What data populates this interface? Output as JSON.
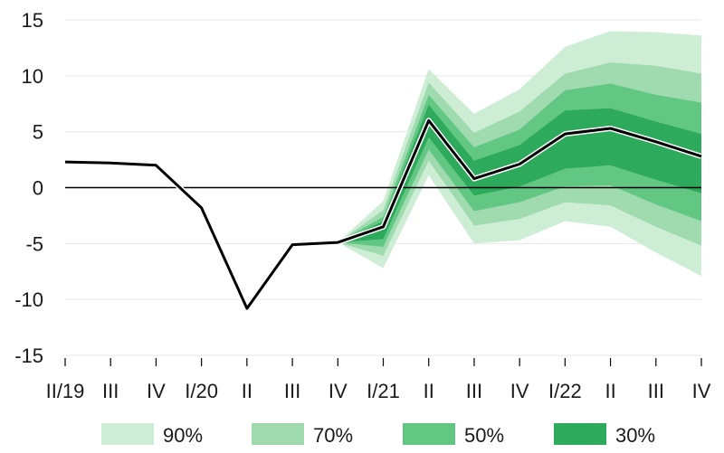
{
  "chart_data": {
    "type": "area",
    "title": "",
    "xlabel": "",
    "ylabel": "",
    "ylim": [
      -15,
      15
    ],
    "yticks": [
      15,
      10,
      5,
      0,
      -5,
      -10,
      -15
    ],
    "grid": "horizontal",
    "legend_position": "bottom",
    "categories": [
      "II/19",
      "III",
      "IV",
      "I/20",
      "II",
      "III",
      "IV",
      "I/21",
      "II",
      "III",
      "IV",
      "I/22",
      "II",
      "III",
      "IV"
    ],
    "central": [
      2.3,
      2.2,
      2.0,
      -1.8,
      -10.8,
      -5.1,
      -4.9,
      -3.5,
      6.0,
      0.8,
      2.1,
      4.8,
      5.3,
      4.1,
      2.8
    ],
    "fan_start_index": 6,
    "bands": [
      {
        "name": "90%",
        "color": "#cdeed5",
        "lower": [
          -4.9,
          -7.2,
          1.1,
          -5.0,
          -4.7,
          -3.0,
          -3.5,
          -5.8,
          -7.9
        ],
        "upper": [
          -4.9,
          -1.2,
          10.6,
          6.6,
          8.8,
          12.6,
          14.0,
          13.9,
          13.6
        ]
      },
      {
        "name": "70%",
        "color": "#9fdbaf",
        "lower": [
          -4.9,
          -6.1,
          2.4,
          -3.4,
          -2.8,
          -1.3,
          -1.6,
          -3.5,
          -5.2
        ],
        "upper": [
          -4.9,
          -2.0,
          9.4,
          4.9,
          6.8,
          10.2,
          11.2,
          10.9,
          10.2
        ]
      },
      {
        "name": "50%",
        "color": "#63c784",
        "lower": [
          -4.9,
          -5.3,
          3.4,
          -2.1,
          -1.3,
          0.1,
          0.2,
          -1.5,
          -3.0
        ],
        "upper": [
          -4.9,
          -2.6,
          8.3,
          3.6,
          5.2,
          8.7,
          9.3,
          8.3,
          7.6
        ]
      },
      {
        "name": "30%",
        "color": "#2eaa5c",
        "lower": [
          -4.9,
          -4.6,
          4.5,
          -0.7,
          0.1,
          1.7,
          2.0,
          0.7,
          -0.5
        ],
        "upper": [
          -4.9,
          -3.0,
          7.4,
          2.4,
          3.8,
          6.9,
          7.1,
          5.9,
          4.8
        ]
      }
    ]
  }
}
